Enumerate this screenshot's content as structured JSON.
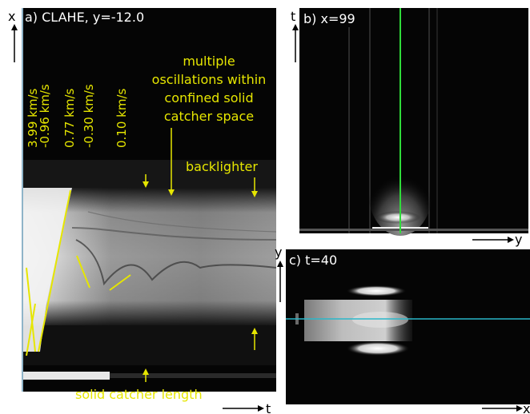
{
  "panel_a": {
    "title": "a) CLAHE, y=-12.0",
    "velocities": [
      "3.99 km/s",
      "-0.96 km/s",
      "0.77 km/s",
      "-0.30 km/s",
      "0.10 km/s"
    ],
    "annotation_osc": [
      "multiple",
      "oscillations within",
      "confined solid",
      "catcher space"
    ],
    "annotation_backlighter": "backlighter",
    "annotation_catcher": "solid catcher length",
    "axis_x": "x",
    "axis_t": "t"
  },
  "panel_b": {
    "title": "b) x=99",
    "axis_t": "t",
    "axis_y": "y",
    "line_color": "#2fdc3a"
  },
  "panel_c": {
    "title": "c) t=40",
    "axis_y": "y",
    "axis_x": "x",
    "line_color": "#2ab7c9"
  },
  "annotation_color": "#e6e600"
}
